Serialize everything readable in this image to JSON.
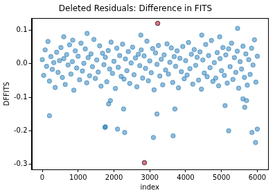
{
  "chart_data": {
    "type": "scatter",
    "title": "Deleted Residuals: Difference in FITS",
    "x_label": "index",
    "y_label": "DFFITS",
    "series": [
      {
        "color": "#1f77b4",
        "x": [
          0,
          40,
          80,
          120,
          160,
          200,
          240,
          280,
          320,
          360,
          400,
          440,
          480,
          520,
          560,
          600,
          640,
          680,
          720,
          760,
          800,
          840,
          880,
          920,
          960,
          1000,
          1040,
          1080,
          1120,
          1160,
          1200,
          1240,
          1280,
          1320,
          1360,
          1400,
          1440,
          1480,
          1520,
          1560,
          1600,
          1640,
          1680,
          1720,
          1760,
          1800,
          1840,
          1880,
          1920,
          1960,
          2000,
          2040,
          2080,
          2120,
          2160,
          2200,
          2240,
          2280,
          2320,
          2360,
          2400,
          2440,
          2480,
          2520,
          2560,
          2600,
          2640,
          2680,
          2720,
          2760,
          2800,
          2840,
          2880,
          2920,
          2960,
          3000,
          3040,
          3080,
          3120,
          3160,
          3200,
          3240,
          3280,
          3320,
          3360,
          3400,
          3440,
          3480,
          3520,
          3560,
          3600,
          3640,
          3680,
          3720,
          3760,
          3800,
          3840,
          3880,
          3920,
          3960,
          4000,
          4040,
          4080,
          4120,
          4160,
          4200,
          4240,
          4280,
          4320,
          4360,
          4400,
          4440,
          4480,
          4520,
          4560,
          4600,
          4640,
          4680,
          4720,
          4760,
          4800,
          4840,
          4880,
          4920,
          4960,
          5000,
          5040,
          5080,
          5120,
          5160,
          5200,
          5240,
          5280,
          5320,
          5360,
          5400,
          5440,
          5480,
          5520,
          5560,
          5600,
          5640,
          5680,
          5720,
          5760,
          5800,
          5840,
          5880,
          5920,
          5960,
          6000,
          200,
          1750,
          1760,
          1850,
          1900,
          2100,
          2300,
          2270,
          3100,
          3200,
          3650,
          3700,
          5100,
          5200,
          5450,
          5650,
          5850,
          5950,
          6000,
          1250,
          2750,
          4450,
          4950,
          5700,
          5600,
          600,
          850
        ],
        "values": [
          0.012,
          -0.035,
          0.041,
          -0.008,
          0.066,
          -0.052,
          0.021,
          -0.017,
          0.003,
          -0.071,
          0.034,
          -0.026,
          0.009,
          0.048,
          -0.041,
          0.015,
          -0.062,
          0.027,
          -0.004,
          0.056,
          -0.031,
          0.006,
          -0.079,
          0.038,
          -0.013,
          0.022,
          -0.048,
          0.061,
          -0.022,
          0.001,
          0.044,
          -0.057,
          0.018,
          -0.036,
          0.029,
          -0.009,
          0.072,
          -0.044,
          0.011,
          -0.025,
          0.053,
          -0.067,
          0.031,
          -0.003,
          0.019,
          -0.054,
          0.039,
          -0.016,
          0.064,
          -0.029,
          0.007,
          -0.074,
          0.046,
          -0.011,
          0.024,
          -0.038,
          0.058,
          -0.046,
          0.014,
          -0.021,
          0.036,
          -0.059,
          0.002,
          0.049,
          -0.033,
          0.017,
          -0.069,
          0.028,
          -0.006,
          0.041,
          -0.043,
          0.023,
          -0.014,
          0.067,
          -0.051,
          0.008,
          -0.027,
          0.045,
          -0.078,
          0.032,
          -0.002,
          0.054,
          -0.037,
          0.013,
          -0.063,
          0.026,
          -0.019,
          0.059,
          -0.031,
          0.004,
          0.047,
          -0.056,
          0.021,
          -0.008,
          0.038,
          -0.072,
          0.016,
          -0.024,
          0.051,
          -0.045,
          0.009,
          -0.034,
          0.063,
          -0.015,
          0.028,
          -0.061,
          0.042,
          -0.005,
          0.019,
          -0.049,
          0.035,
          -0.076,
          0.011,
          -0.028,
          0.057,
          -0.039,
          0.024,
          -0.012,
          0.069,
          -0.053,
          0.003,
          -0.043,
          0.033,
          -0.066,
          0.015,
          -0.021,
          0.048,
          -0.035,
          0.026,
          -0.058,
          0.044,
          -0.009,
          0.061,
          -0.047,
          0.018,
          -0.026,
          0.037,
          -0.073,
          0.006,
          -0.016,
          0.052,
          -0.041,
          0.029,
          -0.064,
          0.012,
          -0.032,
          0.046,
          -0.004,
          0.071,
          -0.055,
          0.022,
          -0.155,
          -0.19,
          -0.188,
          -0.12,
          -0.11,
          -0.195,
          -0.205,
          -0.135,
          -0.22,
          -0.15,
          -0.215,
          -0.135,
          -0.125,
          -0.2,
          0.105,
          -0.13,
          -0.205,
          -0.235,
          -0.195,
          0.09,
          0.085,
          0.085,
          0.08,
          -0.11,
          -0.105,
          0.08,
          0.07
        ]
      },
      {
        "color": "#dc3c5a",
        "x": [
          3220,
          2850
        ],
        "values": [
          0.12,
          -0.295
        ]
      }
    ],
    "xlim": [
      -300,
      6300
    ],
    "xticks": [
      0,
      1000,
      2000,
      3000,
      4000,
      5000,
      6000
    ],
    "ylim": [
      -0.315,
      0.135
    ],
    "yticks": [
      -0.3,
      -0.2,
      -0.1,
      {
        "value": 0,
        "label": "0.0"
      },
      0.1
    ],
    "grid": false
  }
}
